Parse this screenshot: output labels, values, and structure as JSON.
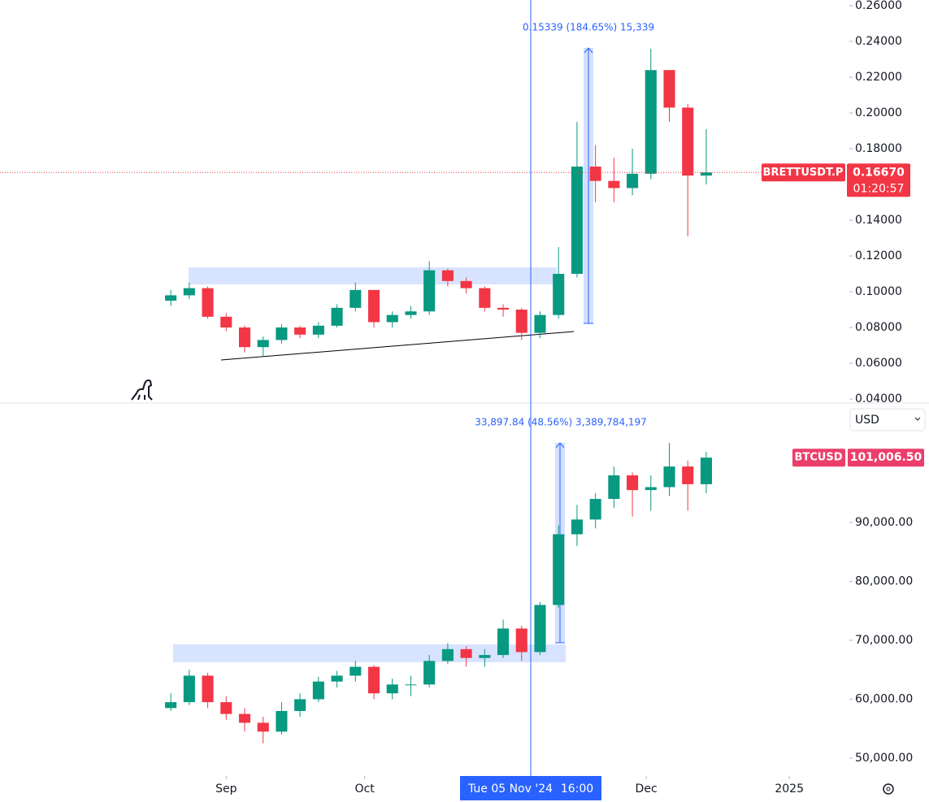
{
  "chart_data": [
    {
      "type": "candlestick",
      "symbol": "BRETTUSDT.P",
      "last_price": {
        "value": 0.1667,
        "label": "0.16670"
      },
      "countdown": "01:20:57",
      "measure_label": "0.15339 (184.65%) 15,339",
      "x": [
        "2024-08-20",
        "2024-08-24",
        "2024-08-28",
        "2024-09-01",
        "2024-09-05",
        "2024-09-09",
        "2024-09-13",
        "2024-09-17",
        "2024-09-21",
        "2024-09-25",
        "2024-09-29",
        "2024-10-03",
        "2024-10-07",
        "2024-10-11",
        "2024-10-15",
        "2024-10-19",
        "2024-10-23",
        "2024-10-27",
        "2024-10-31",
        "2024-11-04",
        "2024-11-08",
        "2024-11-12",
        "2024-11-16",
        "2024-11-20",
        "2024-11-24",
        "2024-11-28",
        "2024-12-02",
        "2024-12-06",
        "2024-12-10",
        "2024-12-14"
      ],
      "open": [
        0.095,
        0.098,
        0.102,
        0.086,
        0.08,
        0.069,
        0.073,
        0.08,
        0.076,
        0.081,
        0.091,
        0.101,
        0.083,
        0.087,
        0.089,
        0.112,
        0.106,
        0.102,
        0.091,
        0.09,
        0.077,
        0.087,
        0.11,
        0.17,
        0.162,
        0.158,
        0.166,
        0.224,
        0.203,
        0.165
      ],
      "high": [
        0.101,
        0.105,
        0.103,
        0.088,
        0.081,
        0.075,
        0.082,
        0.081,
        0.083,
        0.093,
        0.105,
        0.101,
        0.089,
        0.092,
        0.117,
        0.113,
        0.108,
        0.103,
        0.093,
        0.091,
        0.089,
        0.125,
        0.195,
        0.182,
        0.175,
        0.18,
        0.236,
        0.222,
        0.205,
        0.191
      ],
      "low": [
        0.092,
        0.096,
        0.085,
        0.078,
        0.066,
        0.064,
        0.071,
        0.074,
        0.074,
        0.08,
        0.089,
        0.08,
        0.08,
        0.085,
        0.087,
        0.103,
        0.099,
        0.089,
        0.086,
        0.073,
        0.074,
        0.085,
        0.108,
        0.15,
        0.15,
        0.154,
        0.163,
        0.195,
        0.131,
        0.16
      ],
      "close": [
        0.098,
        0.102,
        0.086,
        0.08,
        0.069,
        0.073,
        0.08,
        0.076,
        0.081,
        0.091,
        0.101,
        0.083,
        0.087,
        0.089,
        0.112,
        0.106,
        0.102,
        0.091,
        0.09,
        0.077,
        0.087,
        0.11,
        0.17,
        0.162,
        0.158,
        0.166,
        0.224,
        0.203,
        0.165,
        0.1667
      ],
      "up_color": "#089981",
      "down_color": "#f23645",
      "xlim": [
        "2024-07-14",
        "2025-01-14"
      ],
      "ylim": [
        0.0382,
        0.2632
      ],
      "yticks": [
        {
          "value": 0.26,
          "label": "0.26000"
        },
        {
          "value": 0.24,
          "label": "0.24000"
        },
        {
          "value": 0.22,
          "label": "0.22000"
        },
        {
          "value": 0.2,
          "label": "0.20000"
        },
        {
          "value": 0.18,
          "label": "0.18000"
        },
        {
          "value": 0.14,
          "label": "0.14000"
        },
        {
          "value": 0.12,
          "label": "0.12000"
        },
        {
          "value": 0.1,
          "label": "0.10000"
        },
        {
          "value": 0.08,
          "label": "0.08000"
        },
        {
          "value": 0.06,
          "label": "0.06000"
        },
        {
          "value": 0.04,
          "label": "0.04000"
        }
      ]
    },
    {
      "type": "candlestick",
      "symbol": "BTCUSD",
      "currency": "USD",
      "last_price": {
        "value": 101006.5,
        "label": "101,006.50"
      },
      "measure_label": "33,897.84 (48.56%) 3,389,784,197",
      "x": [
        "2024-08-20",
        "2024-08-24",
        "2024-08-28",
        "2024-09-01",
        "2024-09-05",
        "2024-09-09",
        "2024-09-13",
        "2024-09-17",
        "2024-09-21",
        "2024-09-25",
        "2024-09-29",
        "2024-10-03",
        "2024-10-07",
        "2024-10-11",
        "2024-10-15",
        "2024-10-19",
        "2024-10-23",
        "2024-10-27",
        "2024-10-31",
        "2024-11-04",
        "2024-11-08",
        "2024-11-12",
        "2024-11-16",
        "2024-11-20",
        "2024-11-24",
        "2024-11-28",
        "2024-12-02",
        "2024-12-06",
        "2024-12-10",
        "2024-12-14"
      ],
      "open": [
        58500,
        59500,
        64000,
        59500,
        57500,
        56000,
        54500,
        58000,
        60000,
        63000,
        64000,
        65500,
        61000,
        62500,
        62500,
        66500,
        68500,
        67000,
        67500,
        72000,
        68000,
        76000,
        88000,
        90500,
        94000,
        98000,
        95500,
        96000,
        99500,
        96500
      ],
      "high": [
        61000,
        65000,
        64500,
        60500,
        58500,
        57000,
        59500,
        61000,
        63800,
        64800,
        66500,
        65800,
        63500,
        64000,
        67500,
        69500,
        69000,
        68500,
        73500,
        72500,
        76500,
        89500,
        93000,
        95000,
        99500,
        98500,
        98000,
        103500,
        100500,
        102000
      ],
      "low": [
        58000,
        59000,
        58500,
        56500,
        54500,
        52500,
        54000,
        57000,
        59500,
        62000,
        63000,
        60000,
        60000,
        60500,
        62000,
        66000,
        65500,
        65500,
        67000,
        66500,
        67500,
        75500,
        86000,
        89000,
        92500,
        91000,
        92000,
        94500,
        92000,
        95000
      ],
      "close": [
        59500,
        64000,
        59500,
        57500,
        56000,
        54500,
        58000,
        60000,
        63000,
        64000,
        65500,
        61000,
        62500,
        62500,
        66500,
        68500,
        67000,
        67500,
        72000,
        68000,
        76000,
        88000,
        90500,
        94000,
        98000,
        95500,
        96000,
        99500,
        96500,
        101006.5
      ],
      "up_color": "#089981",
      "down_color": "#f23645",
      "xlim": [
        "2024-07-14",
        "2025-01-14"
      ],
      "ylim": [
        46966,
        110138
      ],
      "yticks": [
        {
          "value": 90000,
          "label": "90,000.00"
        },
        {
          "value": 80000,
          "label": "80,000.00"
        },
        {
          "value": 70000,
          "label": "70,000.00"
        },
        {
          "value": 60000,
          "label": "60,000.00"
        },
        {
          "value": 50000,
          "label": "50,000.00"
        }
      ],
      "xticks": [
        {
          "value": "2024-09-01",
          "label": "Sep"
        },
        {
          "value": "2024-10-01",
          "label": "Oct"
        },
        {
          "value": "2024-12-01",
          "label": "Dec"
        },
        {
          "value": "2025-01-01",
          "label": "2025"
        }
      ]
    }
  ],
  "crosshair": {
    "date": "Tue 05 Nov '24",
    "time": "16:00"
  }
}
